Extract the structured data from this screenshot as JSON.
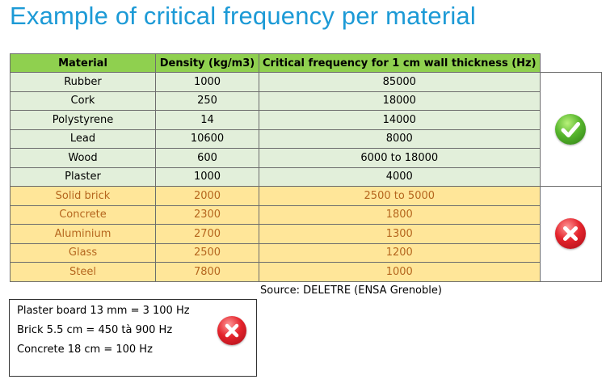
{
  "title": "Example of critical frequency per material",
  "table": {
    "headers": [
      "Material",
      "Density (kg/m3)",
      "Critical frequency for 1 cm wall thickness (Hz)"
    ],
    "good_rows": [
      {
        "material": "Rubber",
        "density": "1000",
        "frequency": "85000"
      },
      {
        "material": "Cork",
        "density": "250",
        "frequency": "18000"
      },
      {
        "material": "Polystyrene",
        "density": "14",
        "frequency": "14000"
      },
      {
        "material": "Lead",
        "density": "10600",
        "frequency": "8000"
      },
      {
        "material": "Wood",
        "density": "600",
        "frequency": "6000 to 18000"
      },
      {
        "material": "Plaster",
        "density": "1000",
        "frequency": "4000"
      }
    ],
    "bad_rows": [
      {
        "material": "Solid brick",
        "density": "2000",
        "frequency": "2500 to 5000"
      },
      {
        "material": "Concrete",
        "density": "2300",
        "frequency": "1800"
      },
      {
        "material": "Aluminium",
        "density": "2700",
        "frequency": "1300"
      },
      {
        "material": "Glass",
        "density": "2500",
        "frequency": "1200"
      },
      {
        "material": "Steel",
        "density": "7800",
        "frequency": "1000"
      }
    ],
    "good_icon": "check-icon",
    "bad_icon": "cross-icon"
  },
  "source": "Source: DELETRE (ENSA Grenoble)",
  "note": {
    "lines": [
      "Plaster board 13 mm = 3 100 Hz",
      "Brick 5.5 cm = 450 tà 900 Hz",
      "Concrete 18 cm = 100 Hz"
    ],
    "icon": "cross-icon"
  },
  "colors": {
    "title": "#1c9ad6",
    "header_bg": "#8fd04f",
    "good_bg": "#e2efda",
    "bad_bg": "#ffe699",
    "bad_text": "#b5661e"
  }
}
